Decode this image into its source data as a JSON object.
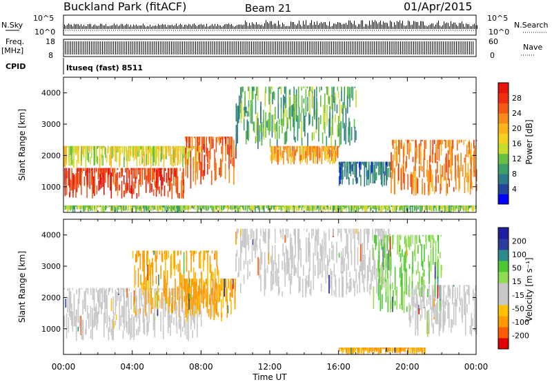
{
  "header": {
    "station": "Buckland Park (fitACF)",
    "beam": "Beam 21",
    "date": "01/Apr/2015"
  },
  "top_panels": {
    "nsky_label": "N.Sky",
    "nsky_ticks": [
      "10^5",
      "10^0"
    ],
    "nsearch_label": "N.Search",
    "nsearch_ticks": [
      "10^5",
      "10^0"
    ],
    "freq_label": "Freq.",
    "freq_unit": "[MHz]",
    "freq_ticks": [
      "18",
      "8"
    ],
    "nave_label": "Nave",
    "nave_ticks": [
      "60",
      "0"
    ],
    "cpid_label": "CPID",
    "cpid_value": "ltuseq (fast) 8511"
  },
  "colors": {
    "power_scale": [
      "#0000ff",
      "#23469b",
      "#2d7a8c",
      "#3ca068",
      "#66c142",
      "#c8dc2e",
      "#f5d020",
      "#fbb41e",
      "#f98a1c",
      "#f55a14",
      "#ee2e0f",
      "#e3140a"
    ],
    "velocity_scale": [
      "#e00000",
      "#ff5c00",
      "#ff9a00",
      "#ffc000",
      "#c8c8c8",
      "#c8c8c8",
      "#8fdc50",
      "#4ec832",
      "#2e8a8c",
      "#2a3c9c",
      "#1e1ea0"
    ],
    "grey": "#c8c8c8"
  },
  "chart_data": [
    {
      "type": "heatmap",
      "name": "power",
      "ylabel": "Slant Range [km]",
      "ylim": [
        180,
        4500
      ],
      "y_ticks": [
        1000,
        2000,
        3000,
        4000
      ],
      "xlim_hours": [
        0,
        24
      ],
      "colorbar": {
        "label": "Power [dB]",
        "ticks": [
          "28",
          "24",
          "20",
          "16",
          "12",
          "8",
          "4"
        ],
        "range": [
          0,
          30
        ]
      },
      "regions_hours_km": [
        {
          "t0": 0,
          "t1": 7,
          "r0": 600,
          "r1": 1600,
          "level": 26
        },
        {
          "t0": 0,
          "t1": 8,
          "r0": 1600,
          "r1": 2300,
          "level": 15
        },
        {
          "t0": 7,
          "t1": 10,
          "r0": 900,
          "r1": 2600,
          "level": 24
        },
        {
          "t0": 10,
          "t1": 17,
          "r0": 2200,
          "r1": 4200,
          "level": 10
        },
        {
          "t0": 12,
          "t1": 16,
          "r0": 1700,
          "r1": 2300,
          "level": 20
        },
        {
          "t0": 16,
          "t1": 19,
          "r0": 1000,
          "r1": 1800,
          "level": 6
        },
        {
          "t0": 19,
          "t1": 24,
          "r0": 700,
          "r1": 2500,
          "level": 22
        },
        {
          "t0": 0,
          "t1": 24,
          "r0": 180,
          "r1": 400,
          "level": 12
        }
      ]
    },
    {
      "type": "heatmap",
      "name": "velocity",
      "ylabel": "Slant Range [km]",
      "ylim": [
        180,
        4500
      ],
      "y_ticks": [
        1000,
        2000,
        3000,
        4000
      ],
      "xlim_hours": [
        0,
        24
      ],
      "x_ticks": [
        "00:00",
        "04:00",
        "08:00",
        "12:00",
        "16:00",
        "20:00",
        "00:00"
      ],
      "xlabel": "Time UT",
      "colorbar": {
        "label": "Velocity [m s⁻¹]",
        "ticks": [
          "200",
          "100",
          "50",
          "15",
          "-15",
          "-50",
          "-100",
          "-200"
        ]
      },
      "regions_hours_km": [
        {
          "t0": 0,
          "t1": 8,
          "r0": 600,
          "r1": 2300,
          "level": 0
        },
        {
          "t0": 4,
          "t1": 9,
          "r0": 1400,
          "r1": 3500,
          "level": -60
        },
        {
          "t0": 7,
          "t1": 10,
          "r0": 1200,
          "r1": 2600,
          "level": -70
        },
        {
          "t0": 10,
          "t1": 19,
          "r0": 2000,
          "r1": 4200,
          "level": 0
        },
        {
          "t0": 18,
          "t1": 22,
          "r0": 1500,
          "r1": 4000,
          "level": 40
        },
        {
          "t0": 20,
          "t1": 24,
          "r0": 700,
          "r1": 2400,
          "level": 0
        },
        {
          "t0": 16,
          "t1": 21,
          "r0": 180,
          "r1": 400,
          "level": -80
        }
      ]
    }
  ]
}
